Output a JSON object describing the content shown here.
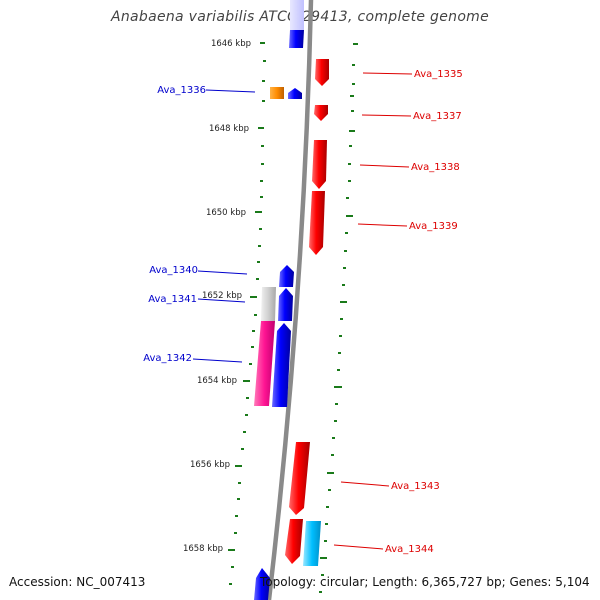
{
  "title": "Anabaena variabilis ATCC 29413, complete genome",
  "accession": "Accession: NC_007413",
  "summary": "Topology: circular; Length: 6,365,727 bp; Genes: 5,104",
  "ticks": [
    "1646 kbp",
    "1648 kbp",
    "1650 kbp",
    "1652 kbp",
    "1654 kbp",
    "1656 kbp",
    "1658 kbp"
  ],
  "genes_left": [
    {
      "id": "ava-1336",
      "label": "Ava_1336",
      "color": "#0000cc"
    },
    {
      "id": "ava-1340",
      "label": "Ava_1340",
      "color": "#0000cc"
    },
    {
      "id": "ava-1341",
      "label": "Ava_1341",
      "color": "#0000cc"
    },
    {
      "id": "ava-1342",
      "label": "Ava_1342",
      "color": "#0000cc"
    }
  ],
  "genes_right": [
    {
      "id": "ava-1335",
      "label": "Ava_1335",
      "color": "#dd0000"
    },
    {
      "id": "ava-1337",
      "label": "Ava_1337",
      "color": "#dd0000"
    },
    {
      "id": "ava-1338",
      "label": "Ava_1338",
      "color": "#dd0000"
    },
    {
      "id": "ava-1339",
      "label": "Ava_1339",
      "color": "#dd0000"
    },
    {
      "id": "ava-1343",
      "label": "Ava_1343",
      "color": "#dd0000"
    },
    {
      "id": "ava-1344",
      "label": "Ava_1344",
      "color": "#dd0000"
    }
  ],
  "colors": {
    "backbone": "#8a8a8a",
    "tick": "#1a7a1a",
    "forward": "#ff0000",
    "reverse": "#0000ff",
    "orange": "#ff8c00",
    "magenta": "#ff1493",
    "gray": "#c8c8c8",
    "cyan": "#00bfff"
  }
}
